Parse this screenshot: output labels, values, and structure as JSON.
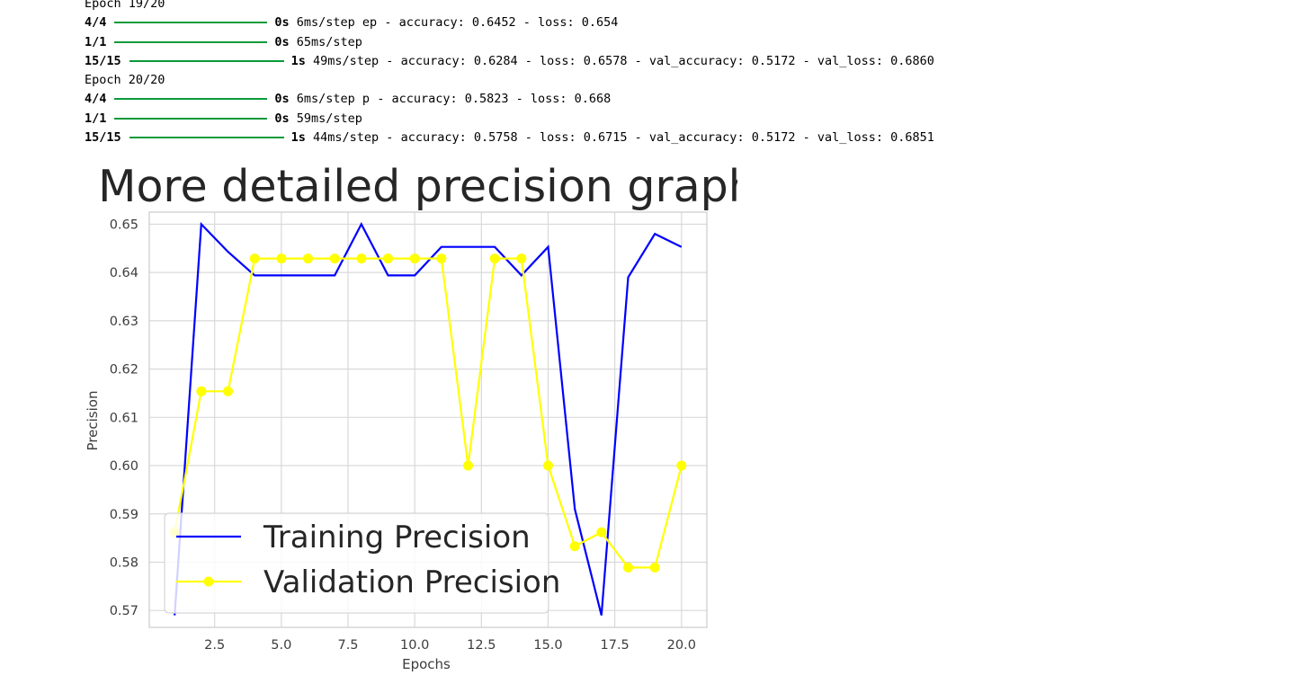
{
  "log": {
    "lines": [
      {
        "type": "text",
        "text": "Epoch 19/20"
      },
      {
        "type": "bar",
        "step": "4/4",
        "time": "0s",
        "rest": " 6ms/step ep - accuracy: 0.6452 - loss: 0.654"
      },
      {
        "type": "bar",
        "step": "1/1",
        "time": "0s",
        "rest": " 65ms/step"
      },
      {
        "type": "bar",
        "step": "15/15",
        "time": "1s",
        "rest": " 49ms/step - accuracy: 0.6284 - loss: 0.6578 - val_accuracy: 0.5172 - val_loss: 0.6860"
      },
      {
        "type": "text",
        "text": "Epoch 20/20"
      },
      {
        "type": "bar",
        "step": "4/4",
        "time": "0s",
        "rest": " 6ms/step p - accuracy: 0.5823 - loss: 0.668"
      },
      {
        "type": "bar",
        "step": "1/1",
        "time": "0s",
        "rest": " 59ms/step"
      },
      {
        "type": "bar",
        "step": "15/15",
        "time": "1s",
        "rest": " 44ms/step - accuracy: 0.5758 - loss: 0.6715 - val_accuracy: 0.5172 - val_loss: 0.6851"
      }
    ],
    "bar_color": "#0a9a3a"
  },
  "chart_data": {
    "type": "line",
    "title": "More detailed precision graph",
    "xlabel": "Epochs",
    "ylabel": "Precision",
    "xlim": [
      0.05,
      20.95
    ],
    "ylim": [
      0.5665,
      0.6525
    ],
    "xticks": [
      2.5,
      5.0,
      7.5,
      10.0,
      12.5,
      15.0,
      17.5,
      20.0
    ],
    "xtick_labels": [
      "2.5",
      "5.0",
      "7.5",
      "10.0",
      "12.5",
      "15.0",
      "17.5",
      "20.0"
    ],
    "yticks": [
      0.57,
      0.58,
      0.59,
      0.6,
      0.61,
      0.62,
      0.63,
      0.64,
      0.65
    ],
    "ytick_labels": [
      "0.57",
      "0.58",
      "0.59",
      "0.60",
      "0.61",
      "0.62",
      "0.63",
      "0.64",
      "0.65"
    ],
    "grid": true,
    "legend_position": "lower left",
    "x": [
      1,
      2,
      3,
      4,
      5,
      6,
      7,
      8,
      9,
      10,
      11,
      12,
      13,
      14,
      15,
      16,
      17,
      18,
      19,
      20
    ],
    "series": [
      {
        "name": "Training Precision",
        "color": "#0000ff",
        "marker": "none",
        "values": [
          0.569,
          0.65,
          0.6443,
          0.6394,
          0.6394,
          0.6394,
          0.6394,
          0.65,
          0.6394,
          0.6394,
          0.6453,
          0.6453,
          0.6453,
          0.6394,
          0.6453,
          0.591,
          0.569,
          0.639,
          0.648,
          0.6453
        ]
      },
      {
        "name": "Validation Precision",
        "color": "#ffff00",
        "marker": "circle",
        "values": [
          0.5862,
          0.6154,
          0.6154,
          0.6429,
          0.6429,
          0.6429,
          0.6429,
          0.6429,
          0.6429,
          0.6429,
          0.6429,
          0.6,
          0.6429,
          0.6429,
          0.6,
          0.5833,
          0.5862,
          0.5789,
          0.5789,
          0.6
        ]
      }
    ]
  }
}
